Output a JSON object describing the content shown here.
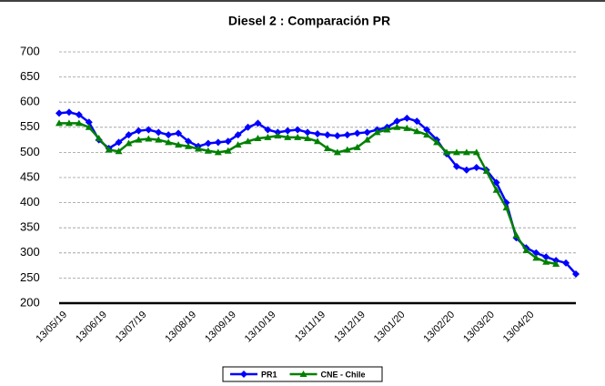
{
  "chart_data": {
    "type": "line",
    "title": "Diesel 2 : Comparación PR",
    "categories": [
      "13/05/19",
      null,
      null,
      null,
      "13/06/19",
      null,
      null,
      null,
      "13/07/19",
      null,
      null,
      null,
      null,
      "13/08/19",
      null,
      null,
      null,
      "13/09/19",
      null,
      null,
      null,
      "13/10/19",
      null,
      null,
      null,
      null,
      "13/11/19",
      null,
      null,
      null,
      "13/12/19",
      null,
      null,
      null,
      "13/01/20",
      null,
      null,
      null,
      null,
      "13/02/20",
      null,
      null,
      null,
      "13/03/20",
      null,
      null,
      null,
      "13/04/20",
      null,
      null,
      null,
      null,
      null
    ],
    "series": [
      {
        "name": "PR1",
        "color": "#0000ff",
        "marker": "diamond",
        "values": [
          578,
          580,
          575,
          560,
          525,
          508,
          520,
          535,
          543,
          545,
          540,
          535,
          538,
          522,
          512,
          518,
          520,
          522,
          535,
          550,
          558,
          545,
          540,
          543,
          545,
          540,
          537,
          535,
          533,
          535,
          538,
          540,
          545,
          550,
          562,
          568,
          562,
          545,
          525,
          497,
          472,
          465,
          470,
          465,
          440,
          400,
          330,
          310,
          300,
          292,
          285,
          280,
          258
        ]
      },
      {
        "name": "CNE - Chile",
        "color": "#008000",
        "marker": "triangle",
        "values": [
          558,
          558,
          558,
          550,
          528,
          505,
          502,
          518,
          525,
          527,
          525,
          520,
          515,
          512,
          507,
          503,
          500,
          503,
          515,
          522,
          528,
          530,
          533,
          530,
          530,
          528,
          522,
          508,
          500,
          505,
          510,
          525,
          540,
          545,
          550,
          548,
          542,
          535,
          520,
          500,
          500,
          500,
          500,
          463,
          425,
          390,
          335,
          305,
          290,
          282,
          278,
          null,
          null
        ]
      }
    ],
    "ylim": [
      200,
      700
    ],
    "yticks": [
      200,
      250,
      300,
      350,
      400,
      450,
      500,
      550,
      600,
      650,
      700
    ],
    "grid": true,
    "legend": "bottom"
  }
}
